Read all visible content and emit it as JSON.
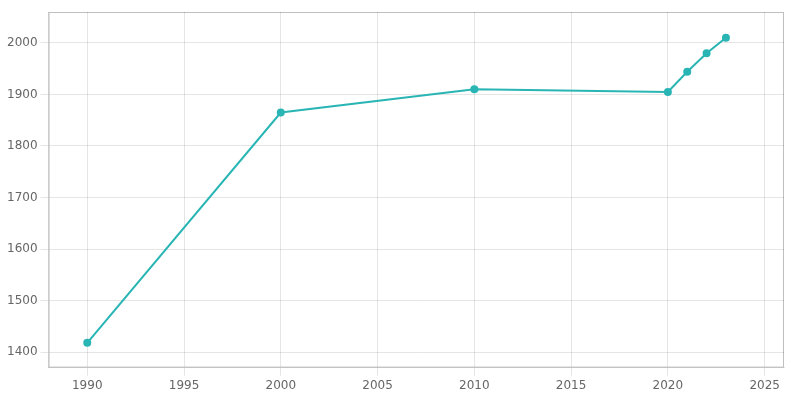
{
  "chart_data": {
    "type": "line",
    "x": [
      1990,
      2000,
      2010,
      2020,
      2021,
      2022,
      2023
    ],
    "values": [
      1418,
      1865,
      1910,
      1905,
      1944,
      1980,
      2010
    ],
    "color": "#2AB5B5",
    "marker": "circle",
    "xlim": [
      1988,
      2026
    ],
    "ylim": [
      1370,
      2060
    ],
    "xticks": [
      1990,
      1995,
      2000,
      2005,
      2010,
      2015,
      2020,
      2025
    ],
    "yticks": [
      1400,
      1500,
      1600,
      1700,
      1800,
      1900,
      2000
    ],
    "grid": true
  }
}
